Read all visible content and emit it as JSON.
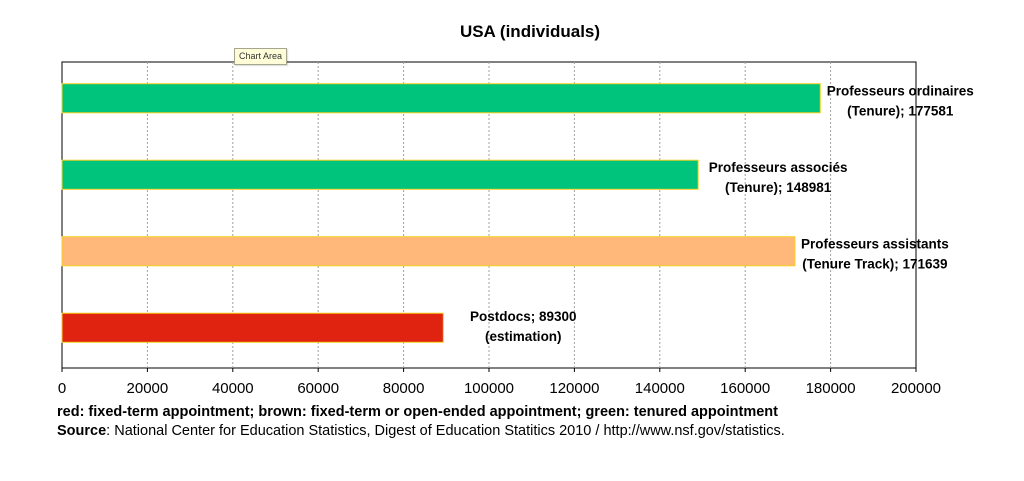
{
  "chart_data": {
    "type": "bar",
    "orientation": "horizontal",
    "title": "USA (individuals)",
    "categories": [
      "Professeurs ordinaires (Tenure)",
      "Professeurs associés (Tenure)",
      "Professeurs assistants (Tenure Track)",
      "Postdocs (estimation)"
    ],
    "values": [
      177581,
      148981,
      171639,
      89300
    ],
    "colors": [
      "#00c47c",
      "#00c47c",
      "#ffb77a",
      "#e02210"
    ],
    "data_labels": [
      [
        "Professeurs ordinaires",
        "(Tenure); 177581"
      ],
      [
        "Professeurs associés",
        "(Tenure); 148981"
      ],
      [
        "Professeurs assistants",
        "(Tenure Track); 171639"
      ],
      [
        "Postdocs; 89300",
        "(estimation)"
      ]
    ],
    "xlim": [
      0,
      200000
    ],
    "xticks": [
      0,
      20000,
      40000,
      60000,
      80000,
      100000,
      120000,
      140000,
      160000,
      180000,
      200000
    ],
    "xlabel": "",
    "ylabel": "",
    "grid": "vertical dashed",
    "bar_outline_color": "#f5d020"
  },
  "tooltip": {
    "text": "Chart Area"
  },
  "footer": {
    "legend_note": "red: fixed-term appointment; brown: fixed-term or open-ended appointment; green: tenured appointment",
    "source_key": "Source",
    "source_text": ": National Center for Education Statistics, Digest of Education Statitics 2010 / http://www.nsf.gov/statistics."
  }
}
